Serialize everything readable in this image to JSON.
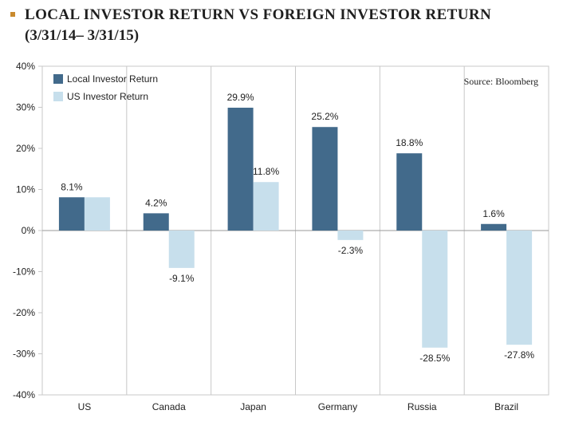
{
  "header": {
    "title": "LOCAL INVESTOR RETURN VS FOREIGN INVESTOR RETURN",
    "subtitle": "(3/31/14– 3/31/15)"
  },
  "colors": {
    "local": "#426a8b",
    "us": "#c7dfec",
    "bullet": "#c98a2e",
    "grid": "#c8c8c8"
  },
  "chart_data": {
    "type": "bar",
    "categories": [
      "US",
      "Canada",
      "Japan",
      "Germany",
      "Russia",
      "Brazil"
    ],
    "series": [
      {
        "name": "Local Investor Return",
        "values": [
          8.1,
          4.2,
          29.9,
          25.2,
          18.8,
          1.6
        ],
        "labels": [
          "8.1%",
          "4.2%",
          "29.9%",
          "25.2%",
          "18.8%",
          "1.6%"
        ]
      },
      {
        "name": "US Investor Return",
        "values": [
          8.1,
          -9.1,
          11.8,
          -2.3,
          -28.5,
          -27.8
        ],
        "labels": [
          "",
          "-9.1%",
          "11.8%",
          "-2.3%",
          "-28.5%",
          "-27.8%"
        ]
      }
    ],
    "ylim": [
      -40,
      40
    ],
    "yticks": [
      40,
      30,
      20,
      10,
      0,
      -10,
      -20,
      -30,
      -40
    ],
    "ytick_labels": [
      "40%",
      "30%",
      "20%",
      "10%",
      "0%",
      "-10%",
      "-20%",
      "-30%",
      "-40%"
    ],
    "annotation": "Source: Bloomberg",
    "legend_position": "top-left",
    "grid": "vertical category separators"
  }
}
